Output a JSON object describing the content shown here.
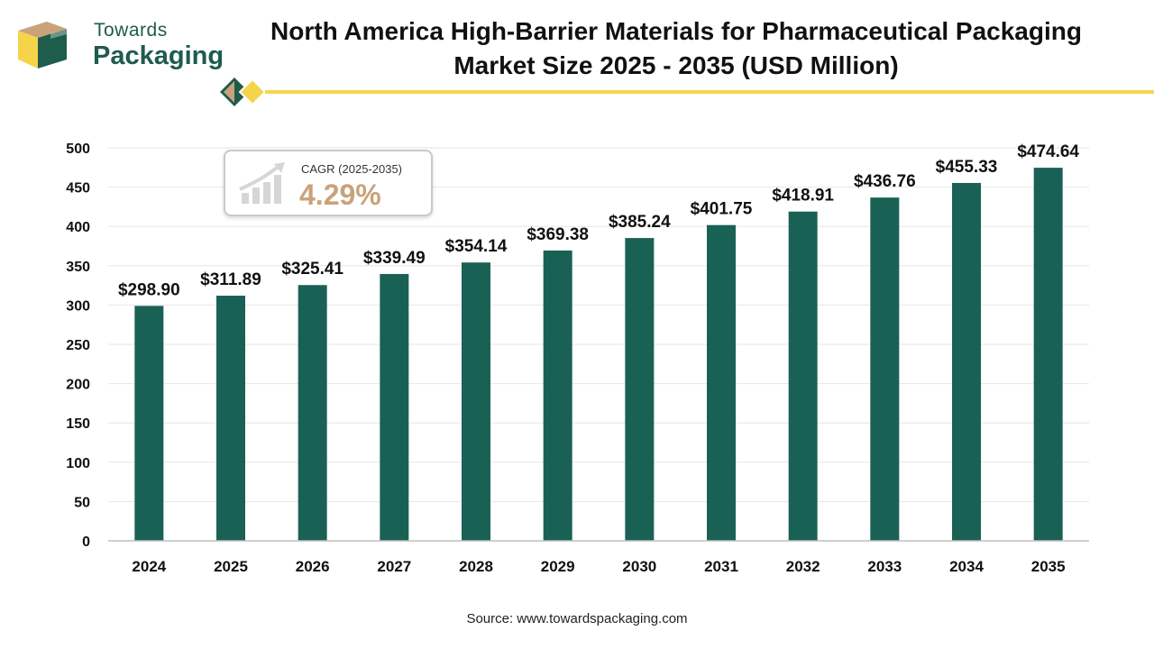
{
  "brand": {
    "line1": "Towards",
    "line2": "Packaging"
  },
  "title": {
    "line1": "North America High-Barrier Materials for Pharmaceutical Packaging",
    "line2": "Market Size 2025 - 2035 (USD Million)"
  },
  "cagr": {
    "label": "CAGR (2025-2035)",
    "value": "4.29%"
  },
  "source": "Source: www.towardspackaging.com",
  "colors": {
    "bar": "#1a6155",
    "brand_green": "#1e5c4c",
    "accent_yellow": "#f5d44a",
    "accent_tan": "#c9a27a"
  },
  "chart_data": {
    "type": "bar",
    "title": "North America High-Barrier Materials for Pharmaceutical Packaging Market Size 2025 - 2035 (USD Million)",
    "xlabel": "",
    "ylabel": "",
    "ylim": [
      0,
      500
    ],
    "yticks": [
      0,
      50,
      100,
      150,
      200,
      250,
      300,
      350,
      400,
      450,
      500
    ],
    "grid": true,
    "categories": [
      "2024",
      "2025",
      "2026",
      "2027",
      "2028",
      "2029",
      "2030",
      "2031",
      "2032",
      "2033",
      "2034",
      "2035"
    ],
    "values": [
      298.9,
      311.89,
      325.41,
      339.49,
      354.14,
      369.38,
      385.24,
      401.75,
      418.91,
      436.76,
      455.33,
      474.64
    ],
    "data_labels": [
      "$298.90",
      "$311.89",
      "$325.41",
      "$339.49",
      "$354.14",
      "$369.38",
      "$385.24",
      "$401.75",
      "$418.91",
      "$436.76",
      "$455.33",
      "$474.64"
    ]
  }
}
